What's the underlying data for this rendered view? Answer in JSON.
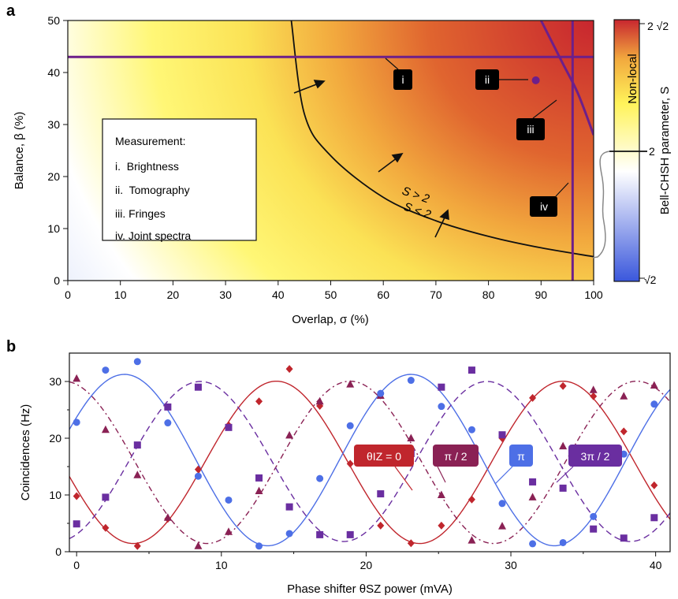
{
  "panel_labels": {
    "a": "a",
    "b": "b"
  },
  "chart_data": [
    {
      "type": "heatmap",
      "panel": "a",
      "xlabel": "Overlap, σ (%)",
      "ylabel": "Balance, β (%)",
      "xlim": [
        0,
        100
      ],
      "ylim": [
        0,
        50
      ],
      "xticks": [
        "0",
        "10",
        "20",
        "30",
        "40",
        "50",
        "60",
        "70",
        "80",
        "90",
        "100"
      ],
      "yticks": [
        "0",
        "10",
        "20",
        "30",
        "40",
        "50"
      ],
      "colorbar": {
        "label": "Bell-CHSH parameter, S",
        "ticks": [
          "2 √2",
          "2",
          "√2"
        ],
        "region_label": "Non-local",
        "range": [
          1.414,
          2.828
        ],
        "colors": [
          "#3a57dc",
          "#ffffff",
          "#fff35a",
          "#f2a93e",
          "#c8262f"
        ]
      },
      "boundary": {
        "labels": [
          "S > 2",
          "S < 2"
        ],
        "curve": [
          [
            42.5,
            50
          ],
          [
            45,
            32
          ],
          [
            50,
            24
          ],
          [
            60,
            16
          ],
          [
            70,
            11.5
          ],
          [
            80,
            8.5
          ],
          [
            90,
            6.3
          ],
          [
            100,
            4.6
          ]
        ]
      },
      "measurement_lines": {
        "i_brightness_beta": 43,
        "ii_tomography_point": [
          89,
          38.5
        ],
        "iii_fringes_curve": [
          [
            90,
            50
          ],
          [
            94,
            42
          ],
          [
            97,
            36
          ],
          [
            100,
            28
          ]
        ],
        "iv_joint_spectra_sigma": 96
      },
      "markers": [
        "i",
        "ii",
        "iii",
        "iv"
      ],
      "legend": {
        "title": "Measurement:",
        "items": [
          "i.  Brightness",
          "ii.  Tomography",
          "iii. Fringes",
          "iv. Joint spectra"
        ]
      }
    },
    {
      "type": "line",
      "panel": "b",
      "xlabel": "Phase shifter θSZ power (mVA)",
      "ylabel": "Coincidences (Hz)",
      "xlim": [
        -0.5,
        41
      ],
      "ylim": [
        0,
        35
      ],
      "xticks": [
        "0",
        "10",
        "20",
        "30",
        "40"
      ],
      "yticks": [
        "0",
        "10",
        "20",
        "30"
      ],
      "fit": {
        "period": 19.8
      },
      "series": [
        {
          "name": "θIZ = 0",
          "color": "#c0262d",
          "marker": "diamond",
          "line": "solid",
          "fit": {
            "center": 15.75,
            "amplitude": 14.3,
            "phase_x": 13.8
          },
          "x": [
            0,
            2,
            4.2,
            6.3,
            8.4,
            10.5,
            12.6,
            14.7,
            16.8,
            18.9,
            21.0,
            23.1,
            25.2,
            27.3,
            29.4,
            31.5,
            33.6,
            35.7,
            37.8,
            39.9
          ],
          "y": [
            9.8,
            4.2,
            1.0,
            5.8,
            14.5,
            22.3,
            26.5,
            32.2,
            25.7,
            15.5,
            4.6,
            1.5,
            4.6,
            9.2,
            20.0,
            27.1,
            29.2,
            27.4,
            21.2,
            11.7
          ]
        },
        {
          "name": "π / 2",
          "color": "#8a2154",
          "marker": "triangle",
          "line": "dash-dot",
          "fit": {
            "center": 15.75,
            "amplitude": 14.3,
            "phase_x": -0.9
          },
          "x": [
            0,
            2,
            4.2,
            6.3,
            8.4,
            10.5,
            12.6,
            14.7,
            16.8,
            18.9,
            21.0,
            23.1,
            25.2,
            27.3,
            29.4,
            31.5,
            33.6,
            35.7,
            37.8,
            39.9
          ],
          "y": [
            30.5,
            21.5,
            13.5,
            6.0,
            1.0,
            3.5,
            10.7,
            20.5,
            26.5,
            29.5,
            27.5,
            20.0,
            10.0,
            2.0,
            4.5,
            9.6,
            18.6,
            28.5,
            27.4,
            29.3
          ]
        },
        {
          "name": "π",
          "color": "#4d6fe6",
          "marker": "circle",
          "line": "solid",
          "fit": {
            "center": 16.15,
            "amplitude": 15.1,
            "phase_x": 3.3
          },
          "x": [
            0,
            2,
            4.2,
            6.3,
            8.4,
            10.5,
            12.6,
            14.7,
            16.8,
            18.9,
            21.0,
            23.1,
            25.2,
            27.3,
            29.4,
            31.5,
            33.6,
            35.7,
            37.8,
            39.9
          ],
          "y": [
            22.8,
            32.0,
            33.5,
            22.7,
            13.3,
            9.1,
            1.0,
            3.2,
            12.9,
            22.2,
            27.9,
            30.2,
            25.6,
            21.5,
            8.5,
            1.4,
            1.6,
            6.2,
            17.2,
            26.0
          ]
        },
        {
          "name": "3π / 2",
          "color": "#6a2ea0",
          "marker": "square",
          "line": "dashed",
          "fit": {
            "center": 15.9,
            "amplitude": 14.1,
            "phase_x": 8.55
          },
          "x": [
            0,
            2,
            4.2,
            6.3,
            8.4,
            10.5,
            12.6,
            14.7,
            16.8,
            18.9,
            21.0,
            23.1,
            25.2,
            27.3,
            29.4,
            31.5,
            33.6,
            35.7,
            37.8,
            39.9
          ],
          "y": [
            4.9,
            9.6,
            18.8,
            25.5,
            29.0,
            21.9,
            13.0,
            7.9,
            3.0,
            3.0,
            10.2,
            17.3,
            29.0,
            32.0,
            20.6,
            12.3,
            11.2,
            4.0,
            2.4,
            6.0
          ]
        }
      ]
    }
  ]
}
